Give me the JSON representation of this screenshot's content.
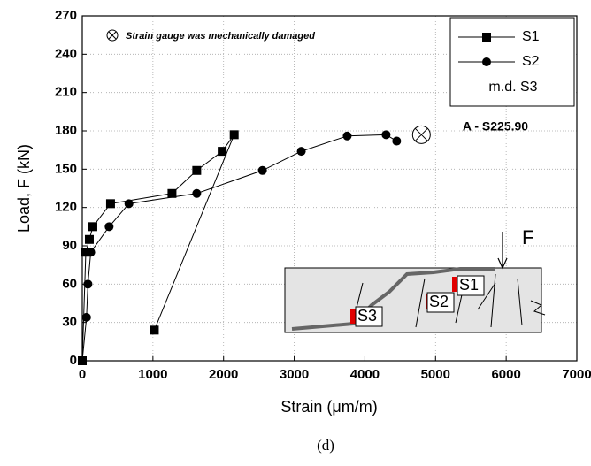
{
  "chart_data": {
    "type": "line",
    "x_label": "Strain (μm/m)",
    "y_label": "Load, F (kN)",
    "annotation": "Strain gauge was mechanically damaged",
    "specimen": "A - S225.90",
    "caption": "(d)",
    "legend_note": "m.d. S3",
    "inset_labels": [
      "S1",
      "S2",
      "S3",
      "F"
    ],
    "xlim": [
      0,
      7000
    ],
    "xticks": [
      0,
      1000,
      2000,
      3000,
      4000,
      5000,
      6000,
      7000
    ],
    "ylim": [
      0,
      270
    ],
    "yticks": [
      0,
      30,
      60,
      90,
      120,
      150,
      180,
      210,
      240,
      270
    ],
    "grid": true,
    "series": [
      {
        "name": "S1",
        "color": "#000000",
        "marker": "square",
        "x": [
          0,
          50,
          100,
          150,
          400,
          1270,
          1620,
          1980,
          2150,
          1020
        ],
        "values": [
          0,
          85,
          95,
          105,
          123,
          131,
          149,
          164,
          177,
          24
        ]
      },
      {
        "name": "S2",
        "color": "#000000",
        "marker": "circle",
        "x": [
          0,
          60,
          80,
          120,
          380,
          660,
          1620,
          2550,
          3100,
          3750,
          4300,
          4450
        ],
        "values": [
          0,
          34,
          60,
          85,
          105,
          123,
          131,
          149,
          164,
          176,
          177,
          172
        ]
      }
    ],
    "damaged_point": {
      "x": 4800,
      "y": 177
    }
  }
}
